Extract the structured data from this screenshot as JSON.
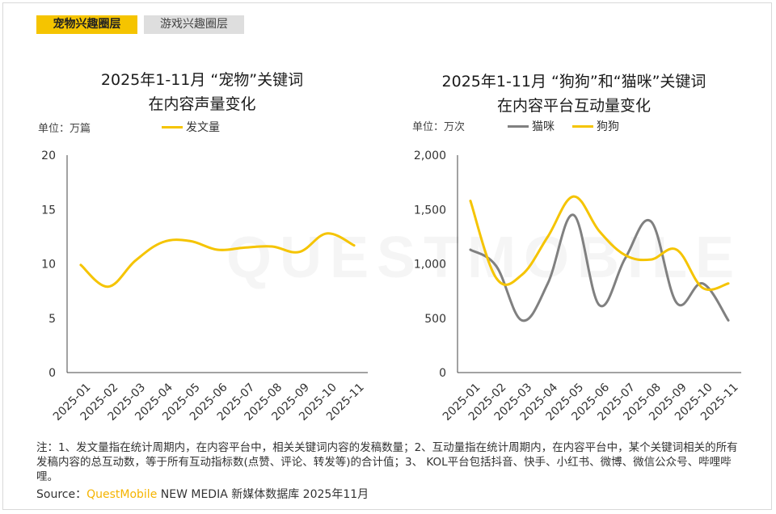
{
  "tabs": [
    {
      "label": "宠物兴趣圈层",
      "active": true
    },
    {
      "label": "游戏兴趣圈层",
      "active": false
    }
  ],
  "watermark": "QUESTMOBILE",
  "colors": {
    "accent": "#f5c400",
    "gray_line": "#808080",
    "axis": "#444444"
  },
  "charts": {
    "left": {
      "title_line1": "2025年1-11月 “宠物”关键词",
      "title_line2": "在内容声量变化",
      "unit": "单位：万篇",
      "legend": [
        "发文量"
      ]
    },
    "right": {
      "title_line1": "2025年1-11月 “狗狗”和“猫咪”关键词",
      "title_line2": "在内容平台互动量变化",
      "unit": "单位：万次",
      "legend": [
        "猫咪",
        "狗狗"
      ]
    }
  },
  "chart_data": [
    {
      "type": "line",
      "title": "2025年1-11月 “宠物”关键词在内容声量变化",
      "ylabel": "单位：万篇",
      "categories": [
        "2025-01",
        "2025-02",
        "2025-03",
        "2025-04",
        "2025-05",
        "2025-06",
        "2025-07",
        "2025-08",
        "2025-09",
        "2025-10",
        "2025-11"
      ],
      "yticks": [
        "0",
        "5",
        "10",
        "15",
        "20"
      ],
      "ylim": [
        0,
        20
      ],
      "series": [
        {
          "name": "发文量",
          "color": "#f5c400",
          "values": [
            9.9,
            7.9,
            10.3,
            12.0,
            12.1,
            11.3,
            11.5,
            11.6,
            11.1,
            12.8,
            11.7
          ]
        }
      ]
    },
    {
      "type": "line",
      "title": "2025年1-11月 “狗狗”和“猫咪”关键词在内容平台互动量变化",
      "ylabel": "单位：万次",
      "categories": [
        "2025-01",
        "2025-02",
        "2025-03",
        "2025-04",
        "2025-05",
        "2025-06",
        "2025-07",
        "2025-08",
        "2025-09",
        "2025-10",
        "2025-11"
      ],
      "yticks": [
        "0",
        "500",
        "1,000",
        "1,500",
        "2,000"
      ],
      "ylim": [
        0,
        2000
      ],
      "series": [
        {
          "name": "猫咪",
          "color": "#808080",
          "values": [
            1130,
            980,
            480,
            820,
            1450,
            620,
            1050,
            1390,
            640,
            820,
            480
          ]
        },
        {
          "name": "狗狗",
          "color": "#f5c400",
          "values": [
            1580,
            870,
            900,
            1250,
            1620,
            1300,
            1080,
            1040,
            1130,
            780,
            820
          ]
        }
      ]
    }
  ],
  "note": "注：1、发文量指在统计周期内，在内容平台中，相关关键词内容的发稿数量；2、互动量指在统计周期内，在内容平台中，某个关键词相关的所有发稿内容的总互动数，等于所有互动指标数(点赞、评论、转发等)的合计值；3、 KOL平台包括抖音、快手、小红书、微博、微信公众号、哔哩哔哩。",
  "source": {
    "prefix": "Source：",
    "brand": "QuestMobile",
    "suffix": " NEW MEDIA 新媒体数据库 2025年11月"
  }
}
